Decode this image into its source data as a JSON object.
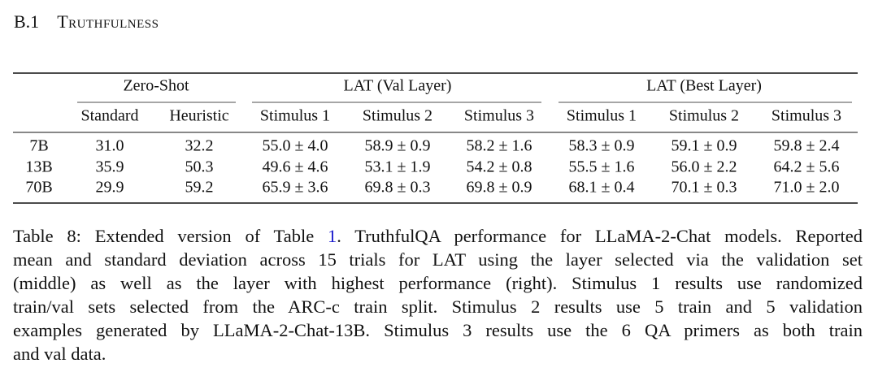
{
  "section": {
    "number": "B.1",
    "title": "Truthfulness"
  },
  "table": {
    "groups": [
      "Zero-Shot",
      "LAT (Val Layer)",
      "LAT (Best Layer)"
    ],
    "columns": [
      "Standard",
      "Heuristic",
      "Stimulus 1",
      "Stimulus 2",
      "Stimulus 3",
      "Stimulus 1",
      "Stimulus 2",
      "Stimulus 3"
    ],
    "rows": [
      [
        "7B",
        "31.0",
        "32.2",
        "55.0 ± 4.0",
        "58.9 ± 0.9",
        "58.2 ± 1.6",
        "58.3 ± 0.9",
        "59.1 ± 0.9",
        "59.8 ± 2.4"
      ],
      [
        "13B",
        "35.9",
        "50.3",
        "49.6 ± 4.6",
        "53.1 ± 1.9",
        "54.2 ± 0.8",
        "55.5 ± 1.6",
        "56.0 ± 2.2",
        "64.2 ± 5.6"
      ],
      [
        "70B",
        "29.9",
        "59.2",
        "65.9 ± 3.6",
        "69.8 ± 0.3",
        "69.8 ± 0.9",
        "68.1 ± 0.4",
        "70.1 ± 0.3",
        "71.0 ± 2.0"
      ]
    ]
  },
  "caption": {
    "first_line": [
      "Table 8: Extended version of Table ",
      "1",
      ". TruthfulQA performance for LLaMA-2-Chat models. Reported"
    ],
    "lines": [
      "mean and standard deviation across 15 trials for LAT using the layer selected via the validation set",
      "(middle) as well as the layer with highest performance (right). Stimulus 1 results use randomized",
      "train/val sets selected from the ARC-c train split. Stimulus 2 results use 5 train and 5 validation",
      "examples generated by LLaMA-2-Chat-13B. Stimulus 3 results use the 6 QA primers as both train",
      "and val data."
    ]
  }
}
